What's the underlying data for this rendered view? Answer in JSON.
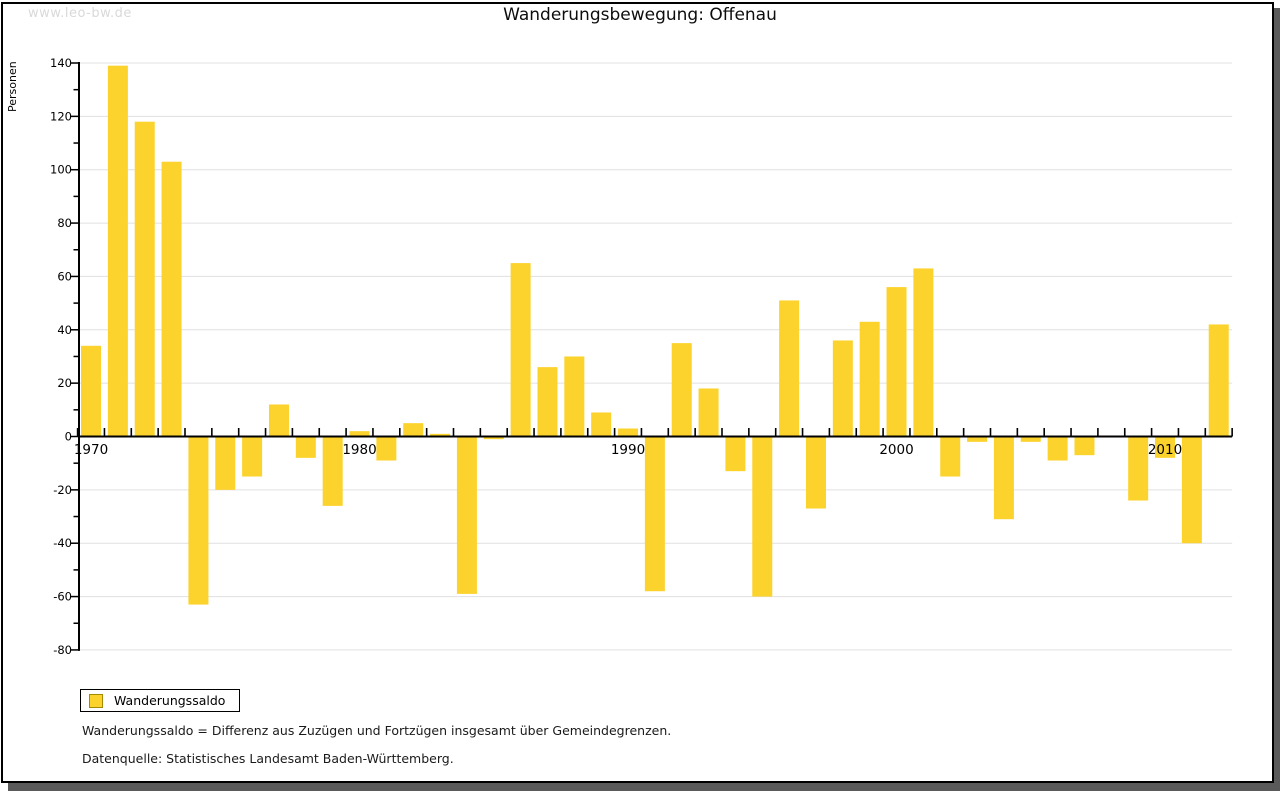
{
  "watermark": "www.leo-bw.de",
  "chart_data": {
    "type": "bar",
    "title": "Wanderungsbewegung: Offenau",
    "xlabel": "",
    "ylabel": "Personen",
    "ylim": [
      -80,
      140
    ],
    "ytick_step": 20,
    "yminor_tick_step": 10,
    "grid": "horizontal",
    "legend_position": "bottom-left",
    "xtick_labels": [
      "1970",
      "1980",
      "1990",
      "2000",
      "2010"
    ],
    "series": [
      {
        "name": "Wanderungssaldo",
        "color": "#fcd32d",
        "x": [
          1970,
          1971,
          1972,
          1973,
          1974,
          1975,
          1976,
          1977,
          1978,
          1979,
          1980,
          1981,
          1982,
          1983,
          1984,
          1985,
          1986,
          1987,
          1988,
          1989,
          1990,
          1991,
          1992,
          1993,
          1994,
          1995,
          1996,
          1997,
          1998,
          1999,
          2000,
          2001,
          2002,
          2003,
          2004,
          2005,
          2006,
          2007,
          2008,
          2009,
          2010,
          2011,
          2012
        ],
        "values": [
          34,
          139,
          118,
          103,
          -63,
          -20,
          -15,
          12,
          -8,
          -26,
          2,
          -9,
          5,
          1,
          -59,
          -1,
          65,
          26,
          30,
          9,
          3,
          -58,
          35,
          18,
          -13,
          -60,
          51,
          -27,
          36,
          43,
          56,
          63,
          -15,
          -2,
          -31,
          -2,
          -9,
          -7,
          0,
          -24,
          -8,
          -40,
          42
        ]
      }
    ]
  },
  "legend": {
    "label": "Wanderungssaldo",
    "swatch_color": "#fcd32d",
    "swatch_border": "#a58a00"
  },
  "footnotes": [
    "Wanderungssaldo = Differenz aus Zuzügen und Fortzügen insgesamt über Gemeindegrenzen.",
    "Datenquelle: Statistisches Landesamt Baden-Württemberg."
  ],
  "colors": {
    "bar": "#fcd32d",
    "grid": "#e0e0e0",
    "axis": "#000000",
    "text": "#000000",
    "watermark": "#d9d9d9",
    "frame_shadow": "#5a5a5a",
    "background": "#ffffff"
  }
}
